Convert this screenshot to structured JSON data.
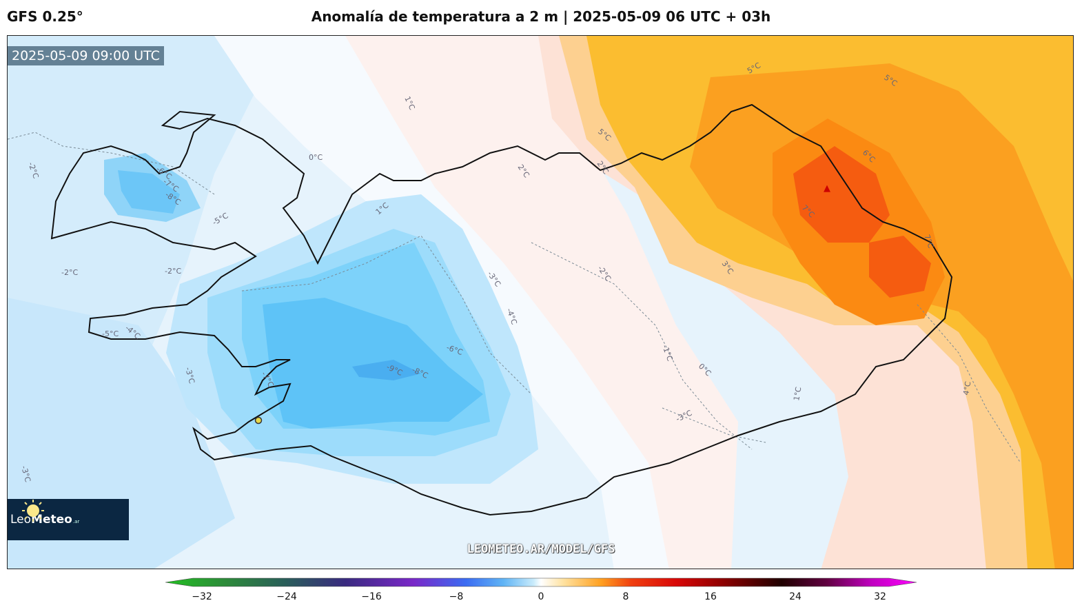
{
  "header": {
    "model": "GFS 0.25°",
    "title": "Anomalía de temperatura a 2 m | 2025-05-09 06 UTC + 03h"
  },
  "map": {
    "valid_time": "2025-05-09 09:00 UTC",
    "watermark": "LEOMETEO.AR/MODEL/GFS",
    "contour_labels": [
      "0°C",
      "1°C",
      "-2°C",
      "-6°C",
      "-7°C",
      "-8°C",
      "-5°C",
      "-2°C",
      "-2°C",
      "-4°C",
      "-5°C",
      "-3°C",
      "-7°C",
      "-9°C",
      "-8°C",
      "-6°C",
      "-3°C",
      "-4°C",
      "-1°C",
      "0°C",
      "-3°C",
      "-2°C",
      "1°C",
      "-3°C",
      "2°C",
      "2°C",
      "5°C",
      "5°C",
      "5°C",
      "6°C",
      "7°C",
      "7°C",
      "3°C",
      "4°C",
      "1°C",
      "-3°C"
    ]
  },
  "logo": {
    "text_light": "Leo",
    "text_bold": "Meteo",
    "suffix": ".ar"
  },
  "colorbar": {
    "ticks": [
      "−32",
      "−24",
      "−16",
      "−8",
      "0",
      "8",
      "16",
      "24",
      "32"
    ],
    "colors": {
      "green": "#33cc33",
      "purple": "#5a1aa0",
      "blue": "#3a6ef0",
      "light_blue": "#a8dcf8",
      "white": "#ffffff",
      "orange": "#ffa020",
      "red": "#e81010",
      "black": "#100000",
      "magenta": "#ff00ff"
    }
  }
}
